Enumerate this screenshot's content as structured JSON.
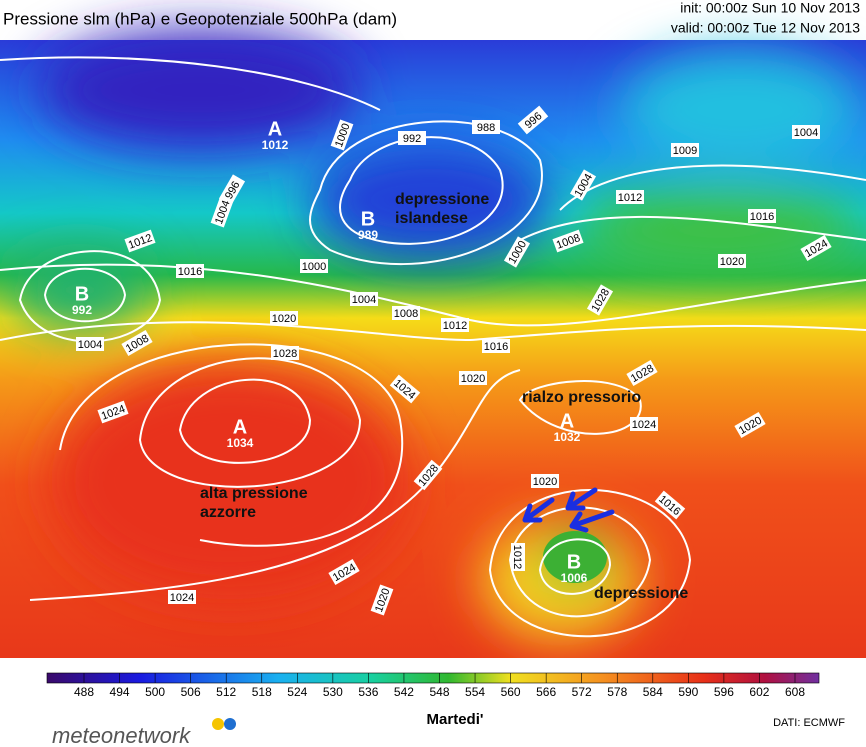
{
  "header": {
    "title": "Pressione slm (hPa) e Geopotenziale 500hPa (dam)",
    "init": "init: 00:00z Sun 10 Nov 2013",
    "valid": "valid: 00:00z Tue 12 Nov 2013"
  },
  "centers": [
    {
      "letter": "A",
      "value": 1012
    },
    {
      "letter": "B",
      "value": 989
    },
    {
      "letter": "B",
      "value": 992
    },
    {
      "letter": "A",
      "value": 1034
    },
    {
      "letter": "A",
      "value": 1032
    },
    {
      "letter": "B",
      "value": 1006
    }
  ],
  "annotations": [
    "depressione islandese",
    "alta pressione azzorre",
    "rialzo pressorio",
    "depressione"
  ],
  "isobar_labels": [
    1000,
    992,
    988,
    996,
    1004,
    1009,
    1004,
    1012,
    1016,
    1024,
    1020,
    1008,
    1000,
    1000,
    1004,
    1008,
    1012,
    1016,
    1020,
    1016,
    1012,
    1008,
    1004,
    1028,
    1024,
    1020,
    1024,
    1028,
    1024,
    1020,
    1028,
    1028,
    1020,
    1016,
    1012,
    1024,
    1024,
    1020,
    996,
    1004
  ],
  "colorbar_ticks": [
    488,
    494,
    500,
    506,
    512,
    518,
    524,
    530,
    536,
    542,
    548,
    554,
    560,
    566,
    572,
    578,
    584,
    590,
    596,
    602,
    608
  ],
  "footer": {
    "day": "Martedi'",
    "source": "DATI:  ECMWF",
    "logo": "meteonetwork"
  }
}
